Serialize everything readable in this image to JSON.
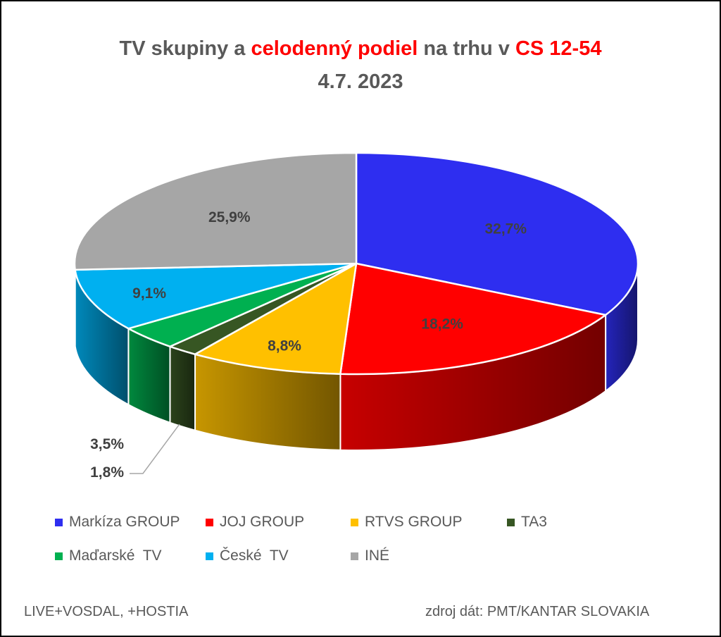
{
  "title": {
    "part1": "TV skupiny a ",
    "highlight1": "celodenný podiel",
    "part2": " na trhu v ",
    "highlight2": "CS 12-54"
  },
  "subtitle": "4.7. 2023",
  "footer": {
    "left": "LIVE+VOSDAL, +HOSTIA",
    "right": "zdroj dát: PMT/KANTAR SLOVAKIA"
  },
  "chart_data": {
    "type": "pie",
    "style": "3d",
    "title": "TV skupiny a celodenný podiel na trhu v CS 12-54",
    "subtitle": "4.7. 2023",
    "legend_position": "bottom",
    "series": [
      {
        "name": "Markíza GROUP",
        "value": 32.7,
        "label": "32,7%",
        "color": "#2e2ef0"
      },
      {
        "name": "JOJ GROUP",
        "value": 18.2,
        "label": "18,2%",
        "color": "#ff0000"
      },
      {
        "name": "RTVS GROUP",
        "value": 8.8,
        "label": "8,8%",
        "color": "#ffc000"
      },
      {
        "name": "TA3",
        "value": 1.8,
        "label": "1,8%",
        "color": "#375623"
      },
      {
        "name": "Maďarské  TV",
        "value": 3.5,
        "label": "3,5%",
        "color": "#00b050"
      },
      {
        "name": "České  TV",
        "value": 9.1,
        "label": "9,1%",
        "color": "#00b0f0"
      },
      {
        "name": "INÉ",
        "value": 25.9,
        "label": "25,9%",
        "color": "#a6a6a6"
      }
    ]
  }
}
